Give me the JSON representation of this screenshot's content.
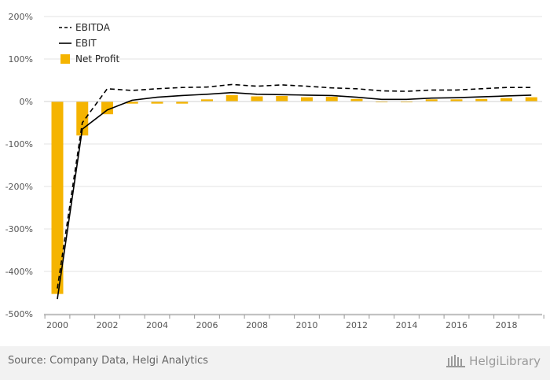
{
  "chart_data": {
    "type": "bar",
    "x": [
      2000,
      2001,
      2002,
      2003,
      2004,
      2005,
      2006,
      2007,
      2008,
      2009,
      2010,
      2011,
      2012,
      2013,
      2014,
      2015,
      2016,
      2017,
      2018,
      2019
    ],
    "x_tick_labels": [
      "2000",
      "2002",
      "2004",
      "2006",
      "2008",
      "2010",
      "2012",
      "2014",
      "2016",
      "2018"
    ],
    "y_tick_labels": [
      "200%",
      "100%",
      "0%",
      "-100%",
      "-200%",
      "-300%",
      "-400%",
      "-500%"
    ],
    "ylim": [
      -500,
      200
    ],
    "y_ticks": [
      200,
      100,
      0,
      -100,
      -200,
      -300,
      -400,
      -500
    ],
    "grid": true,
    "legend_position": "top-left",
    "series": [
      {
        "name": "EBITDA",
        "kind": "line",
        "style": "dashed",
        "color": "#000000",
        "values": [
          -440,
          -50,
          30,
          26,
          30,
          33,
          34,
          40,
          36,
          39,
          36,
          32,
          30,
          25,
          24,
          27,
          27,
          30,
          33,
          33
        ]
      },
      {
        "name": "EBIT",
        "kind": "line",
        "style": "solid",
        "color": "#000000",
        "values": [
          -465,
          -65,
          -20,
          3,
          10,
          14,
          17,
          21,
          17,
          16,
          15,
          14,
          10,
          5,
          5,
          8,
          9,
          11,
          13,
          15
        ]
      },
      {
        "name": "Net Profit",
        "kind": "bar",
        "color": "#f5b400",
        "values": [
          -453,
          -80,
          -30,
          -5,
          -5,
          -5,
          5,
          15,
          12,
          13,
          10,
          11,
          6,
          -2,
          -2,
          5,
          5,
          6,
          8,
          10
        ]
      }
    ]
  },
  "footer": {
    "source": "Source: Company Data, Helgi Analytics",
    "brand": "HelgiLibrary"
  }
}
